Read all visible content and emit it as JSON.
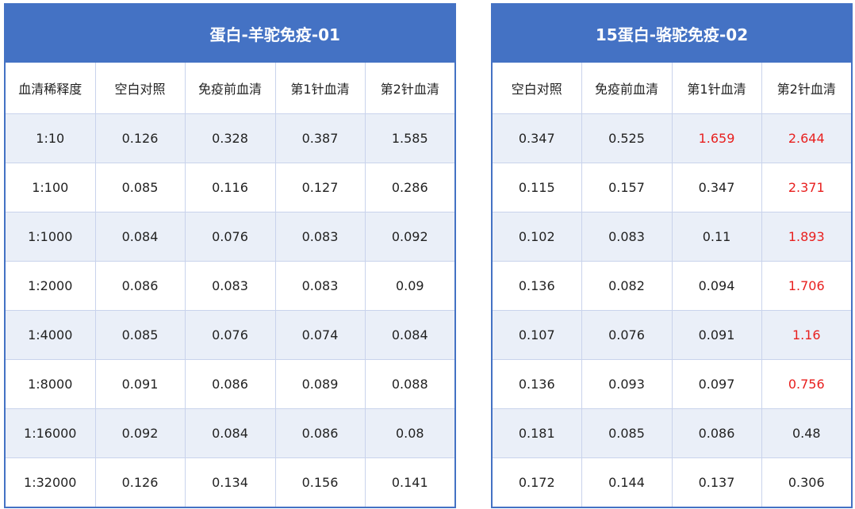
{
  "left": {
    "title": "蛋白-羊驼免疫-01",
    "headers": [
      "血清稀释度",
      "空白对照",
      "免疫前血清",
      "第1针血清",
      "第2针血清"
    ],
    "rows": [
      [
        "1:10",
        "0.126",
        "0.328",
        "0.387",
        "1.585"
      ],
      [
        "1:100",
        "0.085",
        "0.116",
        "0.127",
        "0.286"
      ],
      [
        "1:1000",
        "0.084",
        "0.076",
        "0.083",
        "0.092"
      ],
      [
        "1:2000",
        "0.086",
        "0.083",
        "0.083",
        "0.09"
      ],
      [
        "1:4000",
        "0.085",
        "0.076",
        "0.074",
        "0.084"
      ],
      [
        "1:8000",
        "0.091",
        "0.086",
        "0.089",
        "0.088"
      ],
      [
        "1:16000",
        "0.092",
        "0.084",
        "0.086",
        "0.08"
      ],
      [
        "1:32000",
        "0.126",
        "0.134",
        "0.156",
        "0.141"
      ]
    ]
  },
  "right": {
    "title": "15蛋白-骆驼免疫-02",
    "headers": [
      "空白对照",
      "免疫前血清",
      "第1针血清",
      "第2针血清"
    ],
    "rows": [
      [
        "0.347",
        "0.525",
        "1.659",
        "2.644"
      ],
      [
        "0.115",
        "0.157",
        "0.347",
        "2.371"
      ],
      [
        "0.102",
        "0.083",
        "0.11",
        "1.893"
      ],
      [
        "0.136",
        "0.082",
        "0.094",
        "1.706"
      ],
      [
        "0.107",
        "0.076",
        "0.091",
        "1.16"
      ],
      [
        "0.136",
        "0.093",
        "0.097",
        "0.756"
      ],
      [
        "0.181",
        "0.085",
        "0.086",
        "0.48"
      ],
      [
        "0.172",
        "0.144",
        "0.137",
        "0.306"
      ]
    ],
    "highlight_color": "#e8201f",
    "highlighted": [
      [
        0,
        2
      ],
      [
        0,
        3
      ],
      [
        1,
        3
      ],
      [
        2,
        3
      ],
      [
        3,
        3
      ],
      [
        4,
        3
      ],
      [
        5,
        3
      ]
    ]
  },
  "colors": {
    "header_bg": "#4472c4",
    "alt_row_bg": "#eaeff8"
  }
}
